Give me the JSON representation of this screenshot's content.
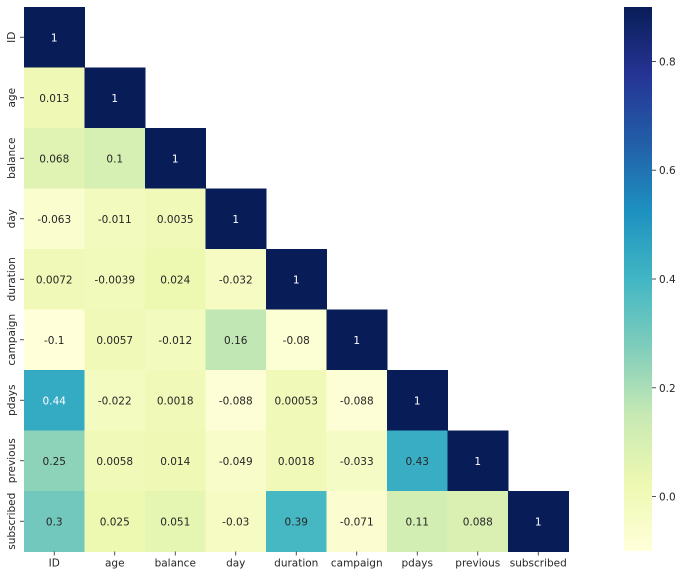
{
  "chart_data": {
    "type": "heatmap",
    "title": "",
    "xlabel": "",
    "ylabel": "",
    "mask": "upper-triangle",
    "labels": [
      "ID",
      "age",
      "balance",
      "day",
      "duration",
      "campaign",
      "pdays",
      "previous",
      "subscribed"
    ],
    "matrix": [
      [
        1,
        null,
        null,
        null,
        null,
        null,
        null,
        null,
        null
      ],
      [
        0.013,
        1,
        null,
        null,
        null,
        null,
        null,
        null,
        null
      ],
      [
        0.068,
        0.1,
        1,
        null,
        null,
        null,
        null,
        null,
        null
      ],
      [
        -0.063,
        -0.011,
        0.0035,
        1,
        null,
        null,
        null,
        null,
        null
      ],
      [
        0.0072,
        -0.0039,
        0.024,
        -0.032,
        1,
        null,
        null,
        null,
        null
      ],
      [
        -0.1,
        0.0057,
        -0.012,
        0.16,
        -0.08,
        1,
        null,
        null,
        null
      ],
      [
        0.44,
        -0.022,
        0.0018,
        -0.088,
        0.00053,
        -0.088,
        1,
        null,
        null
      ],
      [
        0.25,
        0.0058,
        0.014,
        -0.049,
        0.0018,
        -0.033,
        0.43,
        1,
        null
      ],
      [
        0.3,
        0.025,
        0.051,
        -0.03,
        0.39,
        -0.071,
        0.11,
        0.088,
        1
      ]
    ],
    "annotations": [
      [
        "1"
      ],
      [
        "0.013",
        "1"
      ],
      [
        "0.068",
        "0.1",
        "1"
      ],
      [
        "-0.063",
        "-0.011",
        "0.0035",
        "1"
      ],
      [
        "0.0072",
        "-0.0039",
        "0.024",
        "-0.032",
        "1"
      ],
      [
        "-0.1",
        "0.0057",
        "-0.012",
        "0.16",
        "-0.08",
        "1"
      ],
      [
        "0.44",
        "-0.022",
        "0.0018",
        "-0.088",
        "0.00053",
        "-0.088",
        "1"
      ],
      [
        "0.25",
        "0.0058",
        "0.014",
        "-0.049",
        "0.0018",
        "-0.033",
        "0.43",
        "1"
      ],
      [
        "0.3",
        "0.025",
        "0.051",
        "-0.03",
        "0.39",
        "-0.071",
        "0.11",
        "0.088",
        "1"
      ]
    ],
    "colormap": "YlGnBu",
    "vmin": -0.1,
    "vmax": 0.9,
    "colorbar_ticks": [
      0.0,
      0.2,
      0.4,
      0.6,
      0.8
    ],
    "colorbar_tick_labels": [
      "0.0",
      "0.2",
      "0.4",
      "0.6",
      "0.8"
    ]
  }
}
